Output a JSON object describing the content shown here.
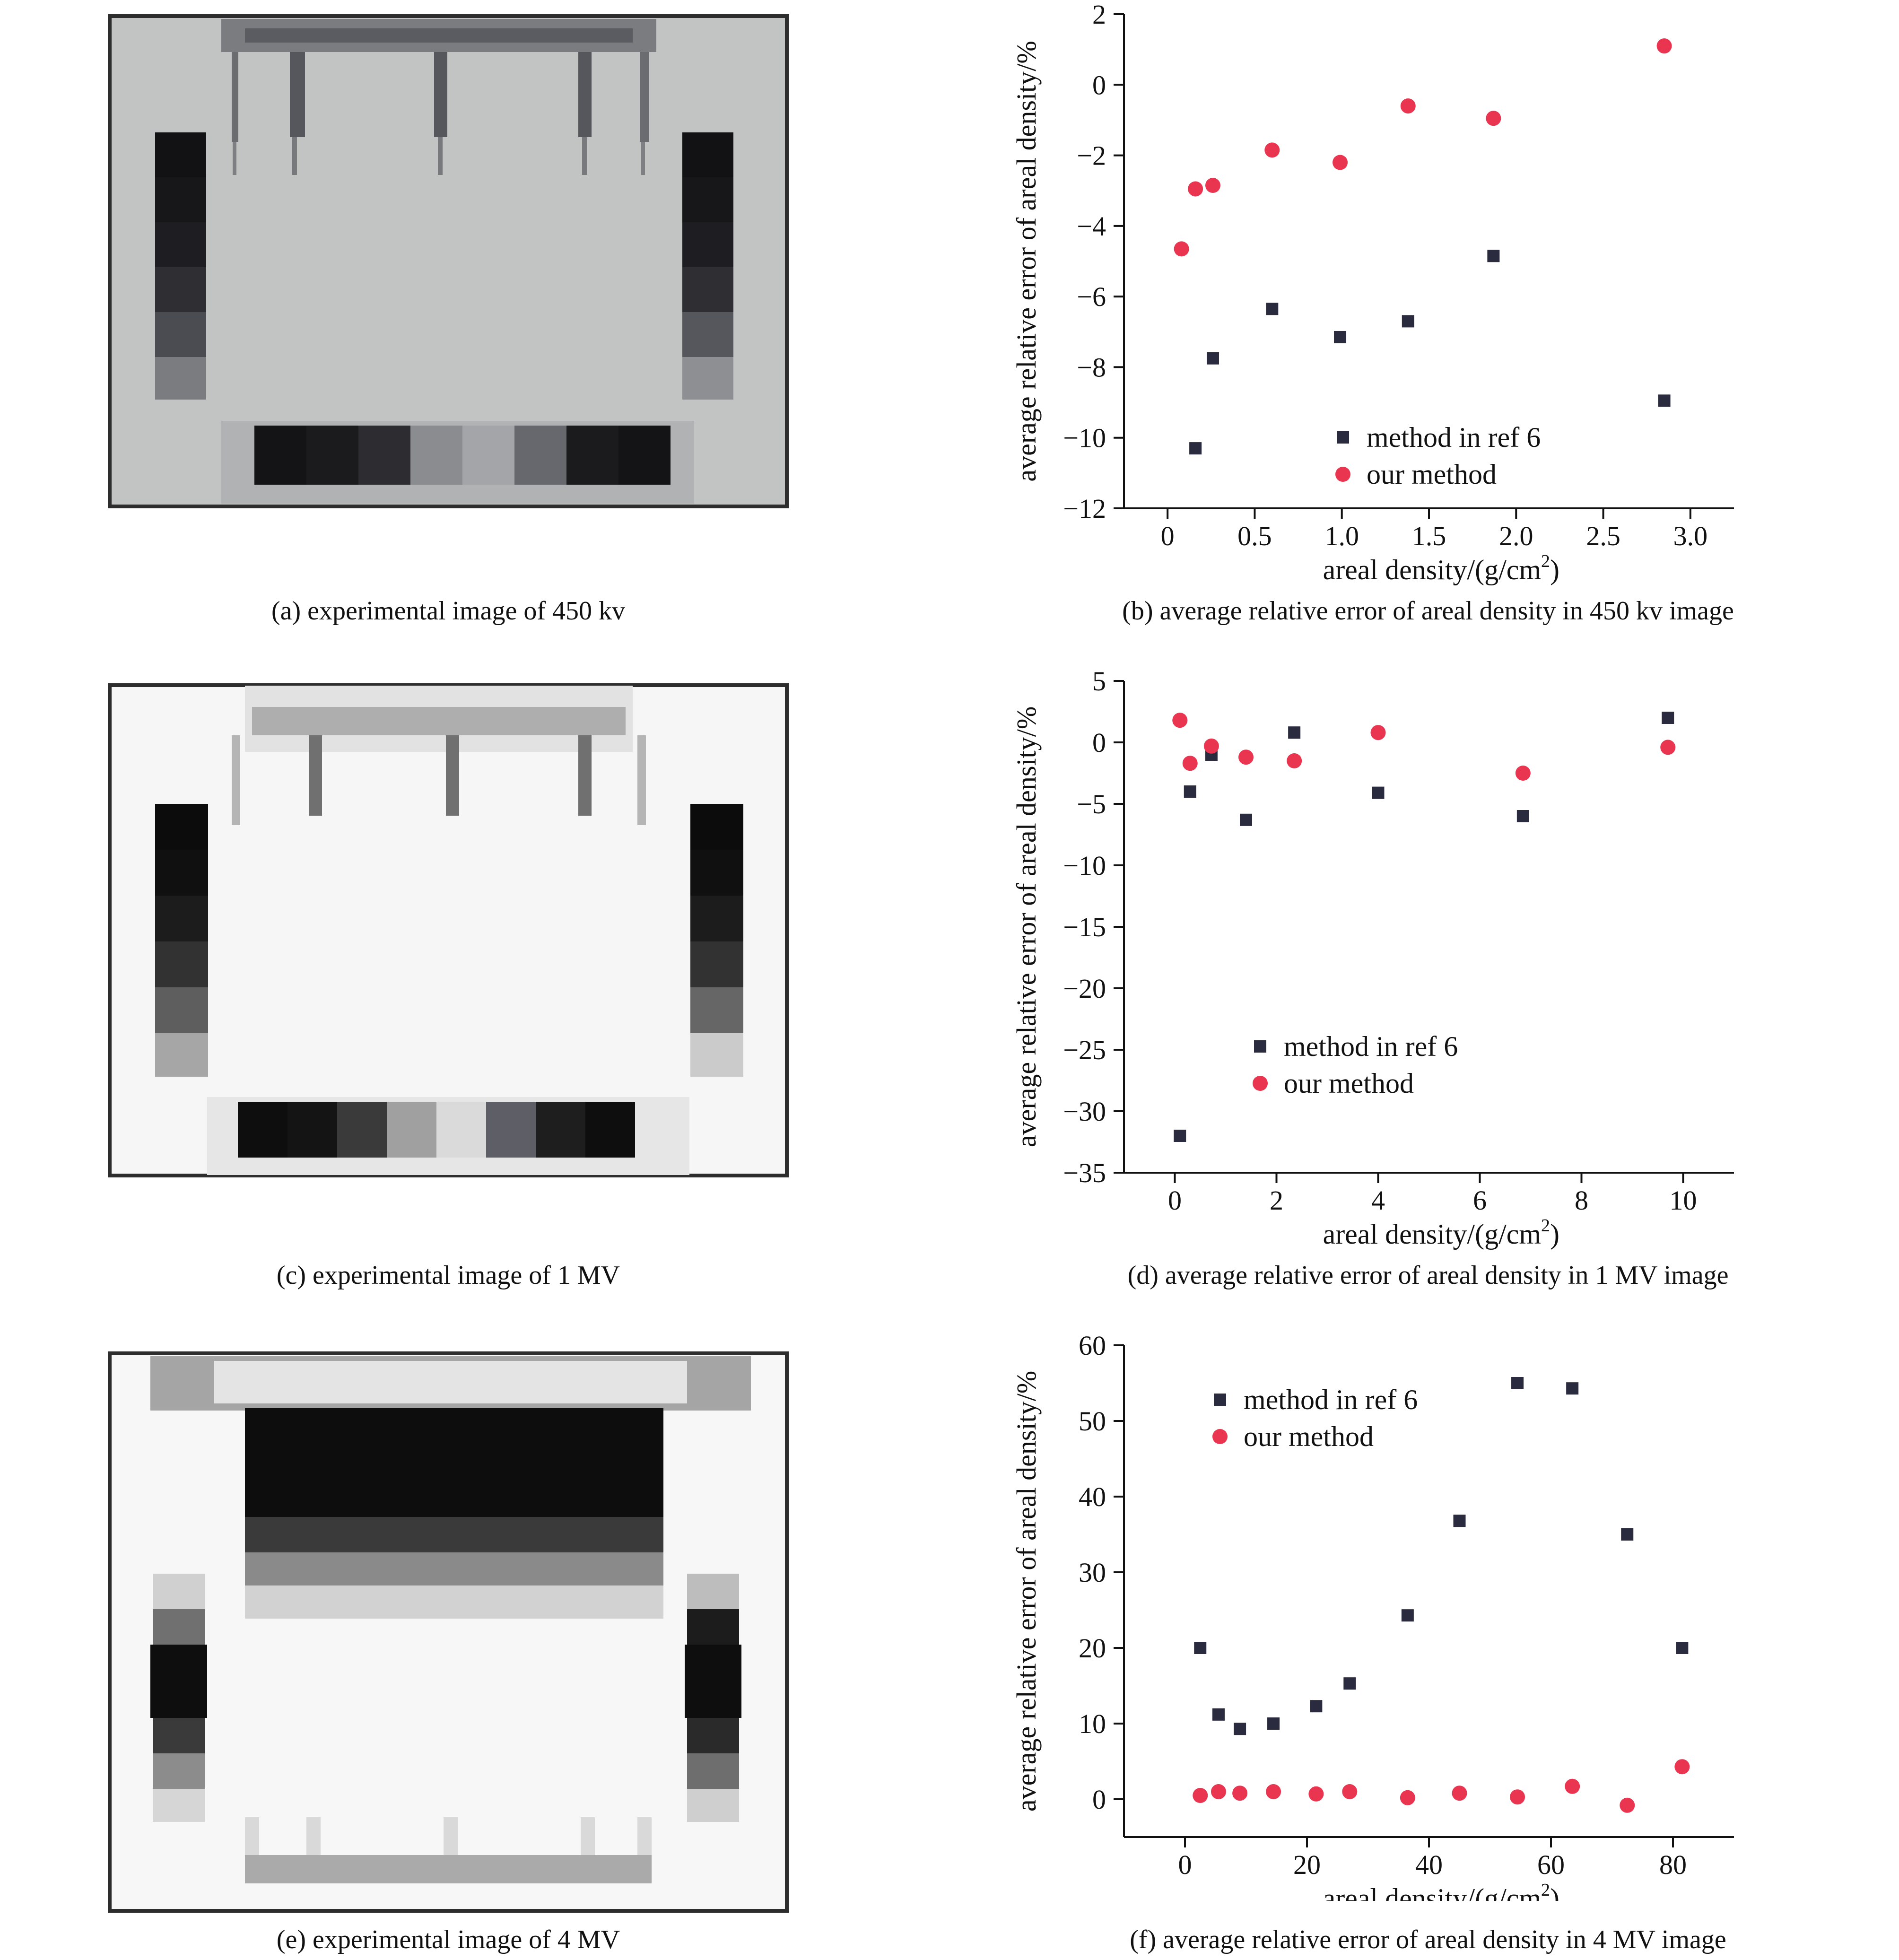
{
  "captions": {
    "a": "(a) experimental image of 450 kv",
    "b": "(b) average relative error of areal density in 450 kv image",
    "c": "(c) experimental image of 1 MV",
    "d": "(d) average relative error of areal density in 1 MV image",
    "e": "(e) experimental image of 4 MV",
    "f": "(f) average relative error of areal density in 4 MV image"
  },
  "colors": {
    "ref6": "#2b2b3f",
    "ours": "#ea3550"
  },
  "chart_data": [
    {
      "id": "b",
      "type": "scatter",
      "xlabel": "areal density/(g/cm",
      "xlabel_sup": "2",
      "xlabel_tail": ")",
      "ylabel": "average relative error of areal density/%",
      "xlim": [
        -0.25,
        3.25
      ],
      "ylim": [
        -12,
        2
      ],
      "xticks": [
        0,
        0.5,
        1.0,
        1.5,
        2.0,
        2.5,
        3.0
      ],
      "xtick_labels": [
        "0",
        "0.5",
        "1.0",
        "1.5",
        "2.0",
        "2.5",
        "3.0"
      ],
      "yticks": [
        -12,
        -10,
        -8,
        -6,
        -4,
        -2,
        0,
        2
      ],
      "ytick_labels": [
        "−12",
        "−10",
        "−8",
        "−6",
        "−4",
        "−2",
        "0",
        "2"
      ],
      "legend_position": "lower-center",
      "series": [
        {
          "name": "method in ref 6",
          "marker": "square",
          "x": [
            0.16,
            0.26,
            0.6,
            0.99,
            1.38,
            1.87,
            2.85
          ],
          "y": [
            -10.3,
            -7.75,
            -6.35,
            -7.15,
            -6.7,
            -4.85,
            -8.95
          ]
        },
        {
          "name": "our method",
          "marker": "circle",
          "x": [
            0.08,
            0.16,
            0.26,
            0.6,
            0.99,
            1.38,
            1.87,
            2.85
          ],
          "y": [
            -4.65,
            -2.95,
            -2.85,
            -1.85,
            -2.2,
            -0.6,
            -0.95,
            1.1
          ]
        }
      ]
    },
    {
      "id": "d",
      "type": "scatter",
      "xlabel": "areal density/(g/cm",
      "xlabel_sup": "2",
      "xlabel_tail": ")",
      "ylabel": "average relative error of areal density/%",
      "xlim": [
        -1,
        11
      ],
      "ylim": [
        -35,
        5
      ],
      "xticks": [
        0,
        2,
        4,
        6,
        8,
        10
      ],
      "xtick_labels": [
        "0",
        "2",
        "4",
        "6",
        "8",
        "10"
      ],
      "yticks": [
        -35,
        -30,
        -25,
        -20,
        -15,
        -10,
        -5,
        0,
        5
      ],
      "ytick_labels": [
        "−35",
        "−30",
        "−25",
        "−20",
        "−15",
        "−10",
        "−5",
        "0",
        "5"
      ],
      "legend_position": "lower-center",
      "series": [
        {
          "name": "method in ref 6",
          "marker": "square",
          "x": [
            0.1,
            0.3,
            0.72,
            1.4,
            2.35,
            4.0,
            6.85,
            9.7
          ],
          "y": [
            -32.0,
            -4.0,
            -1.0,
            -6.3,
            0.8,
            -4.1,
            -6.0,
            2.0
          ]
        },
        {
          "name": "our method",
          "marker": "circle",
          "x": [
            0.1,
            0.3,
            0.72,
            1.4,
            2.35,
            4.0,
            6.85,
            9.7
          ],
          "y": [
            1.8,
            -1.7,
            -0.3,
            -1.2,
            -1.5,
            0.8,
            -2.5,
            -0.4
          ]
        }
      ]
    },
    {
      "id": "f",
      "type": "scatter",
      "xlabel": "areal density/(g/cm",
      "xlabel_sup": "2",
      "xlabel_tail": ")",
      "ylabel": "average relative error of areal density/%",
      "xlim": [
        -10,
        90
      ],
      "ylim": [
        -5,
        60
      ],
      "xticks": [
        0,
        20,
        40,
        60,
        80
      ],
      "xtick_labels": [
        "0",
        "20",
        "40",
        "60",
        "80"
      ],
      "yticks": [
        0,
        10,
        20,
        30,
        40,
        50,
        60
      ],
      "ytick_labels": [
        "0",
        "10",
        "20",
        "30",
        "40",
        "50",
        "60"
      ],
      "legend_position": "upper-left",
      "series": [
        {
          "name": "method in ref 6",
          "marker": "square",
          "x": [
            2.5,
            5.5,
            9,
            14.5,
            21.5,
            27,
            36.5,
            45,
            54.5,
            63.5,
            72.5,
            81.5
          ],
          "y": [
            20,
            11.2,
            9.3,
            10,
            12.3,
            15.3,
            24.3,
            36.8,
            55,
            54.3,
            35,
            20
          ]
        },
        {
          "name": "our method",
          "marker": "circle",
          "x": [
            2.5,
            5.5,
            9,
            14.5,
            21.5,
            27,
            36.5,
            45,
            54.5,
            63.5,
            72.5,
            81.5
          ],
          "y": [
            0.5,
            1.0,
            0.8,
            1.0,
            0.7,
            1.0,
            0.2,
            0.8,
            0.3,
            1.7,
            -0.8,
            4.3
          ]
        }
      ]
    }
  ]
}
